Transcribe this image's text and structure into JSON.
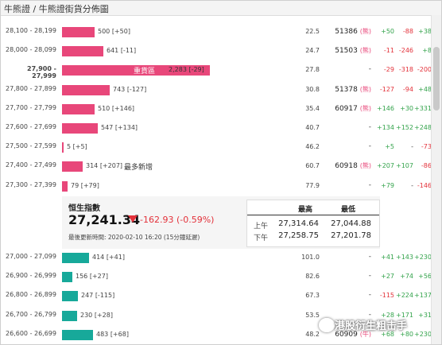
{
  "header": {
    "title": "牛熊證 / 牛熊證街貨分佈圖"
  },
  "bull_rows": [
    {
      "range": "28,100 - 28,199",
      "bar": "500 [+50]",
      "ratio": "22.5",
      "code": "51386",
      "tag": "(熊)",
      "c1": "+50",
      "c2": "-88",
      "c3": "+38",
      "w": 0.219
    },
    {
      "range": "28,000 - 28,099",
      "bar": "641 [-11]",
      "ratio": "24.7",
      "code": "51503",
      "tag": "(熊)",
      "c1": "-11",
      "c2": "-246",
      "c3": "+8",
      "w": 0.281
    },
    {
      "range": "27,900 - 27,999",
      "bar": "2,283 [-29]",
      "note": "重貨區",
      "ratio": "27.8",
      "code": "-",
      "tag": "",
      "c1": "-29",
      "c2": "-318",
      "c3": "-200",
      "w": 1.0,
      "bold": true
    },
    {
      "range": "27,800 - 27,899",
      "bar": "743 [-127]",
      "ratio": "30.8",
      "code": "51378",
      "tag": "(熊)",
      "c1": "-127",
      "c2": "-94",
      "c3": "+48",
      "w": 0.325
    },
    {
      "range": "27,700 - 27,799",
      "bar": "510 [+146]",
      "ratio": "35.4",
      "code": "60917",
      "tag": "(熊)",
      "c1": "+146",
      "c2": "+30",
      "c3": "+331",
      "w": 0.223
    },
    {
      "range": "27,600 - 27,699",
      "bar": "547 [+134]",
      "ratio": "40.7",
      "code": "-",
      "tag": "",
      "c1": "+134",
      "c2": "+152",
      "c3": "+248",
      "w": 0.24
    },
    {
      "range": "27,500 - 27,599",
      "bar": "5 [+5]",
      "ratio": "46.2",
      "code": "-",
      "tag": "",
      "c1": "+5",
      "c2": "-",
      "c3": "-73",
      "w": 0.0
    },
    {
      "range": "27,400 - 27,499",
      "bar": "314 [+207]",
      "note": "最多新增",
      "ratio": "60.7",
      "code": "60918",
      "tag": "(熊)",
      "c1": "+207",
      "c2": "+107",
      "c3": "-86",
      "w": 0.138
    },
    {
      "range": "27,300 - 27,399",
      "bar": "79 [+79]",
      "ratio": "77.9",
      "code": "-",
      "tag": "",
      "c1": "+79",
      "c2": "-",
      "c3": "-146",
      "w": 0.035
    }
  ],
  "index": {
    "name": "恒生指數",
    "value": "27,241.34",
    "change": "-162.93 (-0.59%)",
    "updated": "最後更新時間: 2020-02-10 16:20 (15分鐘延遲)",
    "high_label": "最高",
    "low_label": "最低",
    "am_label": "上午",
    "pm_label": "下午",
    "am_high": "27,314.64",
    "am_low": "27,044.88",
    "pm_high": "27,258.75",
    "pm_low": "27,201.78"
  },
  "bear_rows": [
    {
      "range": "27,000 - 27,099",
      "bar": "414 [+41]",
      "ratio": "101.0",
      "code": "-",
      "tag": "",
      "c1": "+41",
      "c2": "+143",
      "c3": "+230",
      "w": 0.181
    },
    {
      "range": "26,900 - 26,999",
      "bar": "156 [+27]",
      "ratio": "82.6",
      "code": "-",
      "tag": "",
      "c1": "+27",
      "c2": "+74",
      "c3": "+56",
      "w": 0.068
    },
    {
      "range": "26,800 - 26,899",
      "bar": "247 [-115]",
      "ratio": "67.3",
      "code": "-",
      "tag": "",
      "c1": "-115",
      "c2": "+224",
      "c3": "+137",
      "w": 0.108
    },
    {
      "range": "26,700 - 26,799",
      "bar": "230 [+28]",
      "ratio": "53.5",
      "code": "-",
      "tag": "",
      "c1": "+28",
      "c2": "+171",
      "c3": "+31",
      "w": 0.101
    },
    {
      "range": "26,600 - 26,699",
      "bar": "483 [+68]",
      "ratio": "48.2",
      "code": "60909",
      "tag": "(牛)",
      "c1": "+68",
      "c2": "+80",
      "c3": "+230",
      "w": 0.212
    }
  ],
  "watermark": "港股衍生粗击手",
  "colors": {
    "bull": "#e8477a",
    "bear": "#17a99a",
    "up": "#33a34b",
    "down": "#e3313a"
  }
}
